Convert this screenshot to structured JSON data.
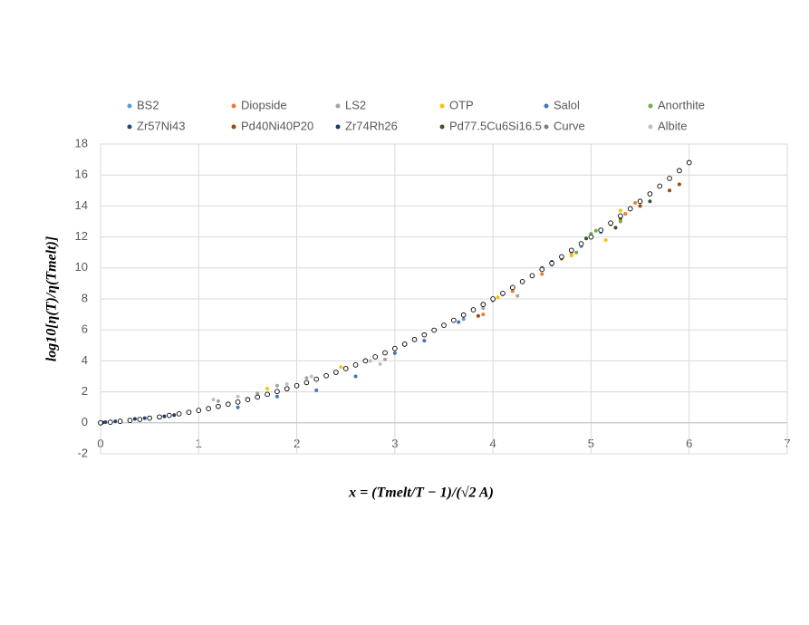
{
  "chart_data": {
    "type": "scatter",
    "x_label": "x = (Tmelt/T − 1)/(√2 A)",
    "y_label": "log10[η(T)/η(Tmelt)]",
    "xlim": [
      0,
      7
    ],
    "xticks": [
      0,
      1,
      2,
      3,
      4,
      5,
      6,
      7
    ],
    "ylim": [
      -2,
      18
    ],
    "yticks": [
      -2,
      0,
      2,
      4,
      6,
      8,
      10,
      12,
      14,
      16,
      18
    ],
    "grid": true,
    "legend": "top",
    "series": [
      {
        "name": "BS2",
        "color": "#5b9bd5",
        "marker": "dot",
        "x": [
          3.7,
          4.0,
          4.3,
          4.6,
          4.9,
          5.1
        ],
        "values": [
          6.7,
          7.9,
          9.1,
          10.2,
          11.4,
          12.3
        ]
      },
      {
        "name": "Diopside",
        "color": "#ed7d31",
        "marker": "dot",
        "x": [
          3.9,
          4.2,
          4.5,
          4.8,
          5.2,
          5.35,
          5.45
        ],
        "values": [
          7.0,
          8.5,
          9.6,
          10.9,
          12.8,
          13.5,
          14.2
        ]
      },
      {
        "name": "LS2",
        "color": "#a5a5a5",
        "marker": "dot",
        "x": [
          1.2,
          1.6,
          1.8,
          2.1,
          2.9,
          3.9,
          4.25
        ],
        "values": [
          1.4,
          1.9,
          2.4,
          2.9,
          4.1,
          7.4,
          8.2
        ]
      },
      {
        "name": "OTP",
        "color": "#ffc000",
        "marker": "dot",
        "x": [
          1.0,
          1.7,
          2.45,
          3.4,
          4.05,
          4.8,
          5.15,
          5.3
        ],
        "values": [
          0.8,
          2.2,
          3.6,
          6.0,
          8.1,
          10.8,
          11.8,
          13.7
        ]
      },
      {
        "name": "Salol",
        "color": "#4472c4",
        "marker": "dot",
        "x": [
          1.4,
          1.8,
          2.2,
          2.6,
          3.0,
          3.3,
          3.65,
          4.5
        ],
        "values": [
          1.0,
          1.7,
          2.1,
          3.0,
          4.5,
          5.3,
          6.5,
          10.0
        ]
      },
      {
        "name": "Anorthite",
        "color": "#70ad47",
        "marker": "dot",
        "x": [
          4.85,
          5.0,
          5.05,
          5.3
        ],
        "values": [
          11.0,
          12.2,
          12.4,
          13.0
        ]
      },
      {
        "name": "Zr57Ni43",
        "color": "#264478",
        "marker": "dot",
        "x": [
          0.05,
          0.15,
          0.3,
          0.45,
          0.6
        ],
        "values": [
          0.05,
          0.1,
          0.2,
          0.3,
          0.4
        ]
      },
      {
        "name": "Pd40Ni40P20",
        "color": "#9e480e",
        "marker": "dot",
        "x": [
          3.85,
          4.7,
          5.3,
          5.5,
          5.8,
          5.9
        ],
        "values": [
          6.9,
          10.6,
          13.2,
          14.0,
          15.0,
          15.4
        ]
      },
      {
        "name": "Zr74Rh26",
        "color": "#1f3864",
        "marker": "dot",
        "x": [
          0.02,
          0.1,
          0.2,
          0.35,
          0.5,
          0.65,
          0.75
        ],
        "values": [
          0.02,
          0.06,
          0.15,
          0.25,
          0.35,
          0.42,
          0.5
        ]
      },
      {
        "name": "Pd77.5Cu6Si16.5",
        "color": "#375623",
        "marker": "dot",
        "x": [
          4.1,
          4.6,
          4.95,
          5.25,
          5.6
        ],
        "values": [
          8.3,
          10.4,
          11.9,
          12.6,
          14.3
        ]
      },
      {
        "name": "Curve",
        "color": "#000000",
        "marker": "ring",
        "x": [
          0,
          0.1,
          0.2,
          0.3,
          0.4,
          0.5,
          0.6,
          0.7,
          0.8,
          0.9,
          1,
          1.1,
          1.2,
          1.3,
          1.4,
          1.5,
          1.6,
          1.7,
          1.8,
          1.9,
          2,
          2.1,
          2.2,
          2.3,
          2.4,
          2.5,
          2.6,
          2.7,
          2.8,
          2.9,
          3,
          3.1,
          3.2,
          3.3,
          3.4,
          3.5,
          3.6,
          3.7,
          3.8,
          3.9,
          4,
          4.1,
          4.2,
          4.3,
          4.4,
          4.5,
          4.6,
          4.7,
          4.8,
          4.9,
          5,
          5.1,
          5.2,
          5.3,
          5.4,
          5.5,
          5.6,
          5.7,
          5.8,
          5.9,
          6
        ],
        "values": [
          0,
          0.04,
          0.1,
          0.16,
          0.22,
          0.3,
          0.38,
          0.48,
          0.58,
          0.68,
          0.8,
          0.92,
          1.06,
          1.2,
          1.34,
          1.5,
          1.66,
          1.84,
          2.02,
          2.2,
          2.4,
          2.6,
          2.82,
          3.04,
          3.26,
          3.5,
          3.74,
          4,
          4.26,
          4.52,
          4.8,
          5.08,
          5.38,
          5.68,
          5.98,
          6.3,
          6.62,
          6.96,
          7.3,
          7.64,
          8,
          8.36,
          8.74,
          9.12,
          9.5,
          9.9,
          10.3,
          10.72,
          11.14,
          11.56,
          12,
          12.44,
          12.9,
          13.36,
          13.82,
          14.3,
          14.78,
          15.28,
          15.78,
          16.28,
          16.8
        ]
      },
      {
        "name": "Albite",
        "color": "#bfbfbf",
        "marker": "dot",
        "x": [
          1.15,
          1.4,
          1.9,
          2.15,
          2.75,
          2.85
        ],
        "values": [
          1.5,
          1.7,
          2.5,
          3.0,
          4.0,
          3.8
        ]
      }
    ]
  }
}
